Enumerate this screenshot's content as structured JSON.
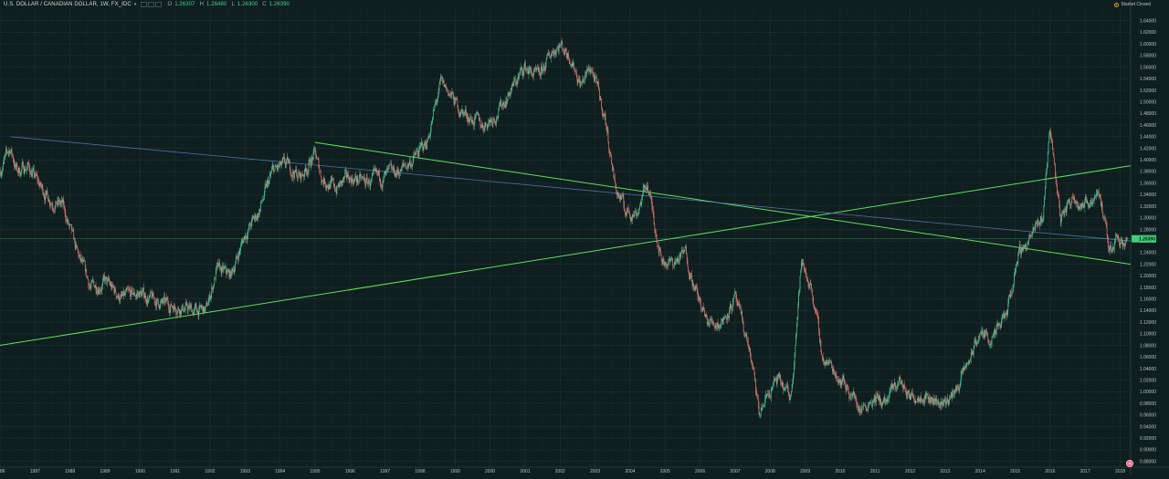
{
  "header": {
    "symbol": "U.S. DOLLAR / CANADIAN DOLLAR, 1W, FX_IDC",
    "ohlc": [
      {
        "label": "O",
        "value": "1.26307"
      },
      {
        "label": "H",
        "value": "1.26480"
      },
      {
        "label": "L",
        "value": "1.26300"
      },
      {
        "label": "C",
        "value": "1.26390"
      }
    ]
  },
  "market_status": "Market Closed",
  "price_axis": {
    "labels": [
      "1.64000",
      "1.62000",
      "1.60000",
      "1.58000",
      "1.56000",
      "1.54000",
      "1.52000",
      "1.50000",
      "1.48000",
      "1.46000",
      "1.44000",
      "1.42000",
      "1.40000",
      "1.38000",
      "1.36000",
      "1.34000",
      "1.32000",
      "1.30000",
      "1.28000",
      "1.26000",
      "1.24000",
      "1.22000",
      "1.20000",
      "1.18000",
      "1.16000",
      "1.14000",
      "1.12000",
      "1.10000",
      "1.08000",
      "1.06000",
      "1.04000",
      "1.02000",
      "1.00000",
      "0.98000",
      "0.96000",
      "0.94000",
      "0.92000",
      "0.90000",
      "0.88000"
    ],
    "current_price": "1.26390"
  },
  "time_axis": {
    "labels": [
      "1986",
      "1987",
      "1988",
      "1989",
      "1990",
      "1991",
      "1992",
      "1993",
      "1994",
      "1995",
      "1996",
      "1997",
      "1998",
      "1999",
      "2000",
      "2001",
      "2002",
      "2003",
      "2004",
      "2005",
      "2006",
      "2007",
      "2008",
      "2009",
      "2010",
      "2011",
      "2012",
      "2013",
      "2014",
      "2015",
      "2016",
      "2017",
      "2018"
    ]
  },
  "colors": {
    "background": "#0f1e1e",
    "grid": "#213434",
    "candle_up": "#4ec59a",
    "candle_down": "#e07878",
    "trendline_green": "#5ee05e",
    "trendline_blue": "#4d6fa8",
    "axis_text": "#b9c4c4",
    "price_tag": "#3fcf7a"
  },
  "chart_data": {
    "type": "line",
    "title": "U.S. DOLLAR / CANADIAN DOLLAR, 1W, FX_IDC",
    "x_unit": "year",
    "ylim": [
      0.87,
      1.66
    ],
    "xlim": [
      1986.0,
      2018.3
    ],
    "grid": true,
    "series": [
      {
        "name": "",
        "x": [
          1986.0,
          1986.3,
          1986.5,
          1986.8,
          1987.2,
          1987.5,
          1987.8,
          1988.2,
          1988.6,
          1989.0,
          1989.5,
          1990.0,
          1990.3,
          1990.7,
          1991.0,
          1991.5,
          1991.9,
          1992.2,
          1992.6,
          1993.0,
          1993.4,
          1993.8,
          1994.2,
          1994.6,
          1995.0,
          1995.2,
          1995.6,
          1996.0,
          1996.5,
          1997.0,
          1997.4,
          1997.8,
          1998.2,
          1998.6,
          1998.8,
          1999.1,
          1999.5,
          1999.8,
          2000.2,
          2000.6,
          2001.0,
          2001.4,
          2001.8,
          2002.0,
          2002.3,
          2002.6,
          2002.9,
          2003.3,
          2003.6,
          2003.9,
          2004.2,
          2004.5,
          2004.9,
          2005.2,
          2005.6,
          2005.9,
          2006.2,
          2006.6,
          2007.0,
          2007.4,
          2007.7,
          2007.9,
          2008.2,
          2008.6,
          2008.9,
          2009.2,
          2009.5,
          2009.8,
          2010.2,
          2010.6,
          2010.9,
          2011.3,
          2011.7,
          2012.0,
          2012.4,
          2012.8,
          2013.2,
          2013.6,
          2014.0,
          2014.4,
          2014.8,
          2015.1,
          2015.5,
          2015.8,
          2016.0,
          2016.3,
          2016.7,
          2017.0,
          2017.4,
          2017.7,
          2017.9,
          2018.2
        ],
        "y": [
          1.38,
          1.42,
          1.38,
          1.39,
          1.35,
          1.33,
          1.32,
          1.24,
          1.18,
          1.19,
          1.16,
          1.17,
          1.16,
          1.15,
          1.15,
          1.14,
          1.14,
          1.21,
          1.2,
          1.27,
          1.31,
          1.38,
          1.39,
          1.37,
          1.41,
          1.37,
          1.35,
          1.37,
          1.36,
          1.37,
          1.38,
          1.4,
          1.43,
          1.53,
          1.52,
          1.49,
          1.47,
          1.46,
          1.48,
          1.52,
          1.56,
          1.54,
          1.59,
          1.6,
          1.58,
          1.53,
          1.56,
          1.47,
          1.35,
          1.31,
          1.31,
          1.36,
          1.23,
          1.22,
          1.24,
          1.17,
          1.12,
          1.12,
          1.16,
          1.08,
          0.96,
          0.99,
          1.02,
          0.99,
          1.22,
          1.18,
          1.06,
          1.04,
          1.01,
          0.97,
          0.99,
          0.98,
          1.02,
          0.99,
          1.0,
          0.98,
          0.99,
          1.04,
          1.1,
          1.09,
          1.14,
          1.24,
          1.27,
          1.3,
          1.46,
          1.3,
          1.34,
          1.32,
          1.35,
          1.24,
          1.27,
          1.26
        ]
      }
    ],
    "trendlines": [
      {
        "color": "green",
        "from": [
          1986.0,
          1.08
        ],
        "to": [
          2018.3,
          1.39
        ]
      },
      {
        "color": "green",
        "from": [
          1995.0,
          1.43
        ],
        "to": [
          2018.3,
          1.22
        ]
      },
      {
        "color": "blue",
        "from": [
          1986.3,
          1.44
        ],
        "to": [
          2018.3,
          1.26
        ]
      }
    ]
  }
}
